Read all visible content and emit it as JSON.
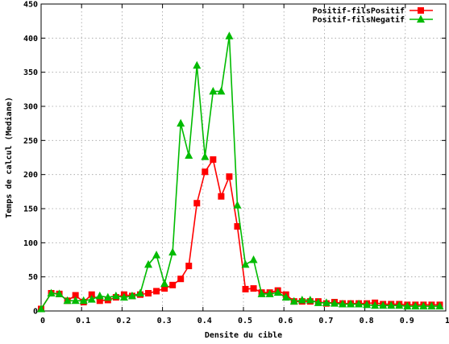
{
  "chart_data": {
    "type": "line",
    "title": "",
    "xlabel": "Densite du cible",
    "ylabel": "Temps de calcul (Mediane)",
    "xlim": [
      0,
      1
    ],
    "ylim": [
      0,
      450
    ],
    "grid": true,
    "legend_position": "top-right",
    "x_ticks": [
      "0",
      "0.1",
      "0.2",
      "0.3",
      "0.4",
      "0.5",
      "0.6",
      "0.7",
      "0.8",
      "0.9",
      "1"
    ],
    "y_ticks": [
      "0",
      "50",
      "100",
      "150",
      "200",
      "250",
      "300",
      "350",
      "400",
      "450"
    ],
    "x": [
      0.0,
      0.025,
      0.045,
      0.065,
      0.085,
      0.105,
      0.125,
      0.145,
      0.165,
      0.185,
      0.205,
      0.225,
      0.245,
      0.265,
      0.285,
      0.305,
      0.325,
      0.345,
      0.365,
      0.385,
      0.405,
      0.425,
      0.445,
      0.465,
      0.485,
      0.505,
      0.525,
      0.545,
      0.565,
      0.585,
      0.605,
      0.625,
      0.645,
      0.665,
      0.685,
      0.705,
      0.725,
      0.745,
      0.765,
      0.785,
      0.805,
      0.825,
      0.845,
      0.865,
      0.885,
      0.905,
      0.925,
      0.945,
      0.965,
      0.985
    ],
    "series": [
      {
        "name": "Positif-filsPositif",
        "color": "#ff0000",
        "marker": "square",
        "values": [
          3,
          26,
          25,
          15,
          23,
          13,
          24,
          15,
          16,
          20,
          24,
          22,
          24,
          26,
          29,
          33,
          38,
          47,
          66,
          158,
          204,
          222,
          168,
          197,
          124,
          32,
          33,
          27,
          27,
          30,
          24,
          14,
          14,
          14,
          14,
          11,
          13,
          11,
          11,
          11,
          11,
          12,
          10,
          10,
          10,
          9,
          9,
          9,
          9,
          9
        ]
      },
      {
        "name": "Positif-filsNegatif",
        "color": "#00bb00",
        "marker": "triangle",
        "values": [
          3,
          26,
          25,
          15,
          15,
          15,
          17,
          22,
          20,
          22,
          20,
          22,
          26,
          68,
          82,
          40,
          86,
          275,
          228,
          360,
          226,
          322,
          322,
          403,
          155,
          68,
          75,
          25,
          25,
          27,
          20,
          14,
          16,
          16,
          12,
          12,
          11,
          10,
          10,
          10,
          9,
          8,
          8,
          8,
          8,
          7,
          7,
          7,
          7,
          7
        ]
      }
    ]
  }
}
